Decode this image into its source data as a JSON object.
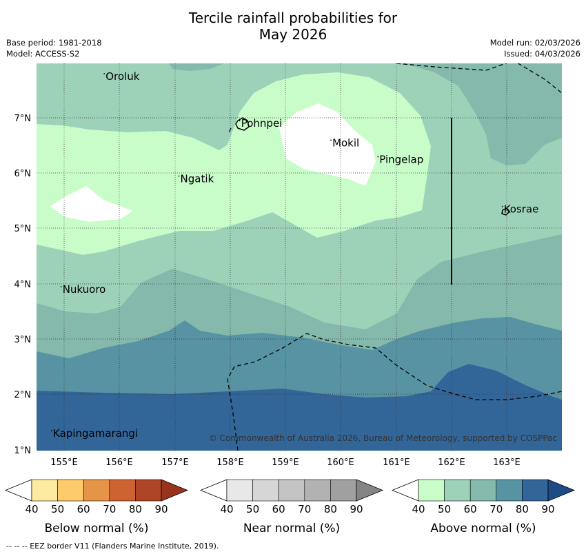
{
  "title_line1": "Tercile rainfall probabilities for",
  "title_line2": "May 2026",
  "base_period": "Base period: 1981-2018",
  "model": "Model: ACCESS-S2",
  "model_run": "Model run: 02/03/2026",
  "issued": "Issued: 04/03/2026",
  "places": [
    {
      "name": "Oroluk",
      "lon": 155.75,
      "lat": 7.7
    },
    {
      "name": "Pohnpei",
      "lon": 158.2,
      "lat": 6.85
    },
    {
      "name": "Mokil",
      "lon": 159.85,
      "lat": 6.5
    },
    {
      "name": "Pingelap",
      "lon": 160.7,
      "lat": 6.2
    },
    {
      "name": "Ngatik",
      "lon": 157.1,
      "lat": 5.85
    },
    {
      "name": "Kosrae",
      "lon": 162.95,
      "lat": 5.3
    },
    {
      "name": "Nukuoro",
      "lon": 154.97,
      "lat": 3.85
    },
    {
      "name": "Kapingamarangi",
      "lon": 154.8,
      "lat": 1.25
    }
  ],
  "x_ticks": [
    "155°E",
    "156°E",
    "157°E",
    "158°E",
    "159°E",
    "160°E",
    "161°E",
    "162°E",
    "163°E"
  ],
  "y_ticks": [
    "7°N",
    "6°N",
    "5°N",
    "4°N",
    "3°N",
    "2°N",
    "1°N"
  ],
  "copyright": "© Commonwealth of Australia 2026, Bureau of Meteorology, supported by COSPPac",
  "colorbars": [
    {
      "label": "Below normal (%)",
      "ticks": [
        "40",
        "50",
        "60",
        "70",
        "80",
        "90"
      ],
      "colors": [
        "#ffffff",
        "#fdeaa1",
        "#fdcb6a",
        "#e69447",
        "#cf6231",
        "#ad4526",
        "#98331e"
      ]
    },
    {
      "label": "Near normal (%)",
      "ticks": [
        "40",
        "50",
        "60",
        "70",
        "80",
        "90"
      ],
      "colors": [
        "#ffffff",
        "#e8e8e8",
        "#d6d6d6",
        "#c4c4c4",
        "#b2b2b2",
        "#a0a0a0",
        "#848484"
      ]
    },
    {
      "label": "Above normal (%)",
      "ticks": [
        "40",
        "50",
        "60",
        "70",
        "80",
        "90"
      ],
      "colors": [
        "#ffffff",
        "#c8fcc9",
        "#9dd2b9",
        "#84b9ab",
        "#5793a3",
        "#326598",
        "#1d4b86"
      ]
    }
  ],
  "footnote": "-- -- -- EEZ border V11 (Flanders Marine Institute, 2019)."
}
